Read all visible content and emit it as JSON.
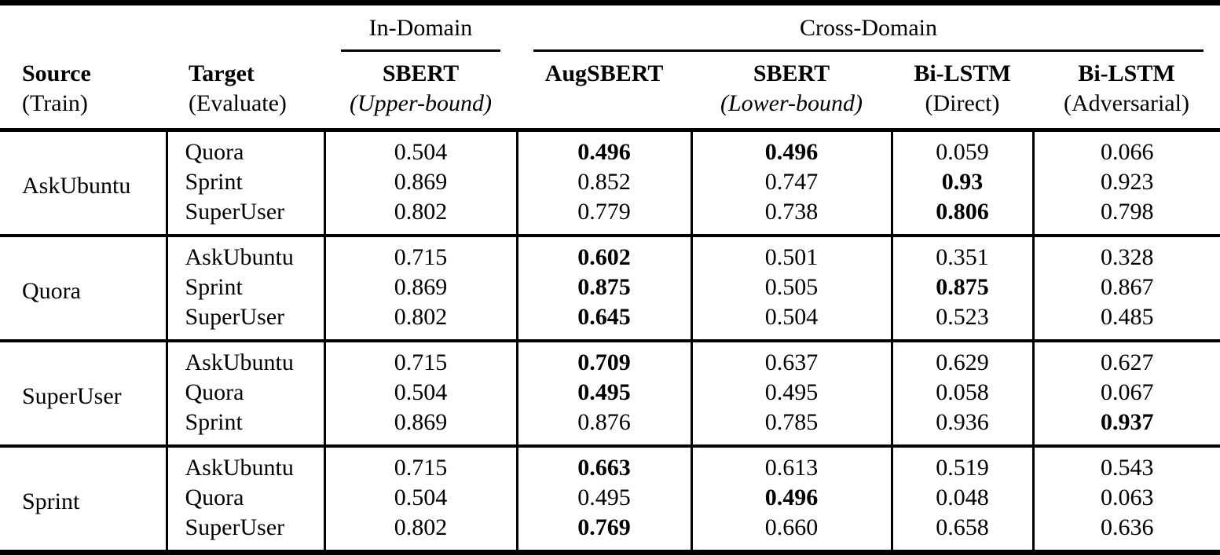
{
  "colors": {
    "text": "#000000",
    "background": "#ffffff",
    "rule": "#000000"
  },
  "table": {
    "spanners": [
      {
        "label": "In-Domain"
      },
      {
        "label": "Cross-Domain"
      }
    ],
    "columns": [
      {
        "line1": "Source",
        "line2": "(Train)"
      },
      {
        "line1": "Target",
        "line2": "(Evaluate)"
      },
      {
        "line1": "SBERT",
        "line2": "(Upper-bound)"
      },
      {
        "line1": "AugSBERT",
        "line2": ""
      },
      {
        "line1": "SBERT",
        "line2": "(Lower-bound)"
      },
      {
        "line1": "Bi-LSTM",
        "line2": "(Direct)"
      },
      {
        "line1": "Bi-LSTM",
        "line2": "(Adversarial)"
      }
    ],
    "groups": [
      {
        "source": "AskUbuntu",
        "rows": [
          {
            "target": "Quora",
            "values": [
              "0.504",
              "0.496",
              "0.496",
              "0.059",
              "0.066"
            ],
            "bold": [
              false,
              true,
              true,
              false,
              false
            ]
          },
          {
            "target": "Sprint",
            "values": [
              "0.869",
              "0.852",
              "0.747",
              "0.93",
              "0.923"
            ],
            "bold": [
              false,
              false,
              false,
              true,
              false
            ]
          },
          {
            "target": "SuperUser",
            "values": [
              "0.802",
              "0.779",
              "0.738",
              "0.806",
              "0.798"
            ],
            "bold": [
              false,
              false,
              false,
              true,
              false
            ]
          }
        ]
      },
      {
        "source": "Quora",
        "rows": [
          {
            "target": "AskUbuntu",
            "values": [
              "0.715",
              "0.602",
              "0.501",
              "0.351",
              "0.328"
            ],
            "bold": [
              false,
              true,
              false,
              false,
              false
            ]
          },
          {
            "target": "Sprint",
            "values": [
              "0.869",
              "0.875",
              "0.505",
              "0.875",
              "0.867"
            ],
            "bold": [
              false,
              true,
              false,
              true,
              false
            ]
          },
          {
            "target": "SuperUser",
            "values": [
              "0.802",
              "0.645",
              "0.504",
              "0.523",
              "0.485"
            ],
            "bold": [
              false,
              true,
              false,
              false,
              false
            ]
          }
        ]
      },
      {
        "source": "SuperUser",
        "rows": [
          {
            "target": "AskUbuntu",
            "values": [
              "0.715",
              "0.709",
              "0.637",
              "0.629",
              "0.627"
            ],
            "bold": [
              false,
              true,
              false,
              false,
              false
            ]
          },
          {
            "target": "Quora",
            "values": [
              "0.504",
              "0.495",
              "0.495",
              "0.058",
              "0.067"
            ],
            "bold": [
              false,
              true,
              false,
              false,
              false
            ]
          },
          {
            "target": "Sprint",
            "values": [
              "0.869",
              "0.876",
              "0.785",
              "0.936",
              "0.937"
            ],
            "bold": [
              false,
              false,
              false,
              false,
              true
            ]
          }
        ]
      },
      {
        "source": "Sprint",
        "rows": [
          {
            "target": "AskUbuntu",
            "values": [
              "0.715",
              "0.663",
              "0.613",
              "0.519",
              "0.543"
            ],
            "bold": [
              false,
              true,
              false,
              false,
              false
            ]
          },
          {
            "target": "Quora",
            "values": [
              "0.504",
              "0.495",
              "0.496",
              "0.048",
              "0.063"
            ],
            "bold": [
              false,
              false,
              true,
              false,
              false
            ]
          },
          {
            "target": "SuperUser",
            "values": [
              "0.802",
              "0.769",
              "0.660",
              "0.658",
              "0.636"
            ],
            "bold": [
              false,
              true,
              false,
              false,
              false
            ]
          }
        ]
      }
    ]
  }
}
